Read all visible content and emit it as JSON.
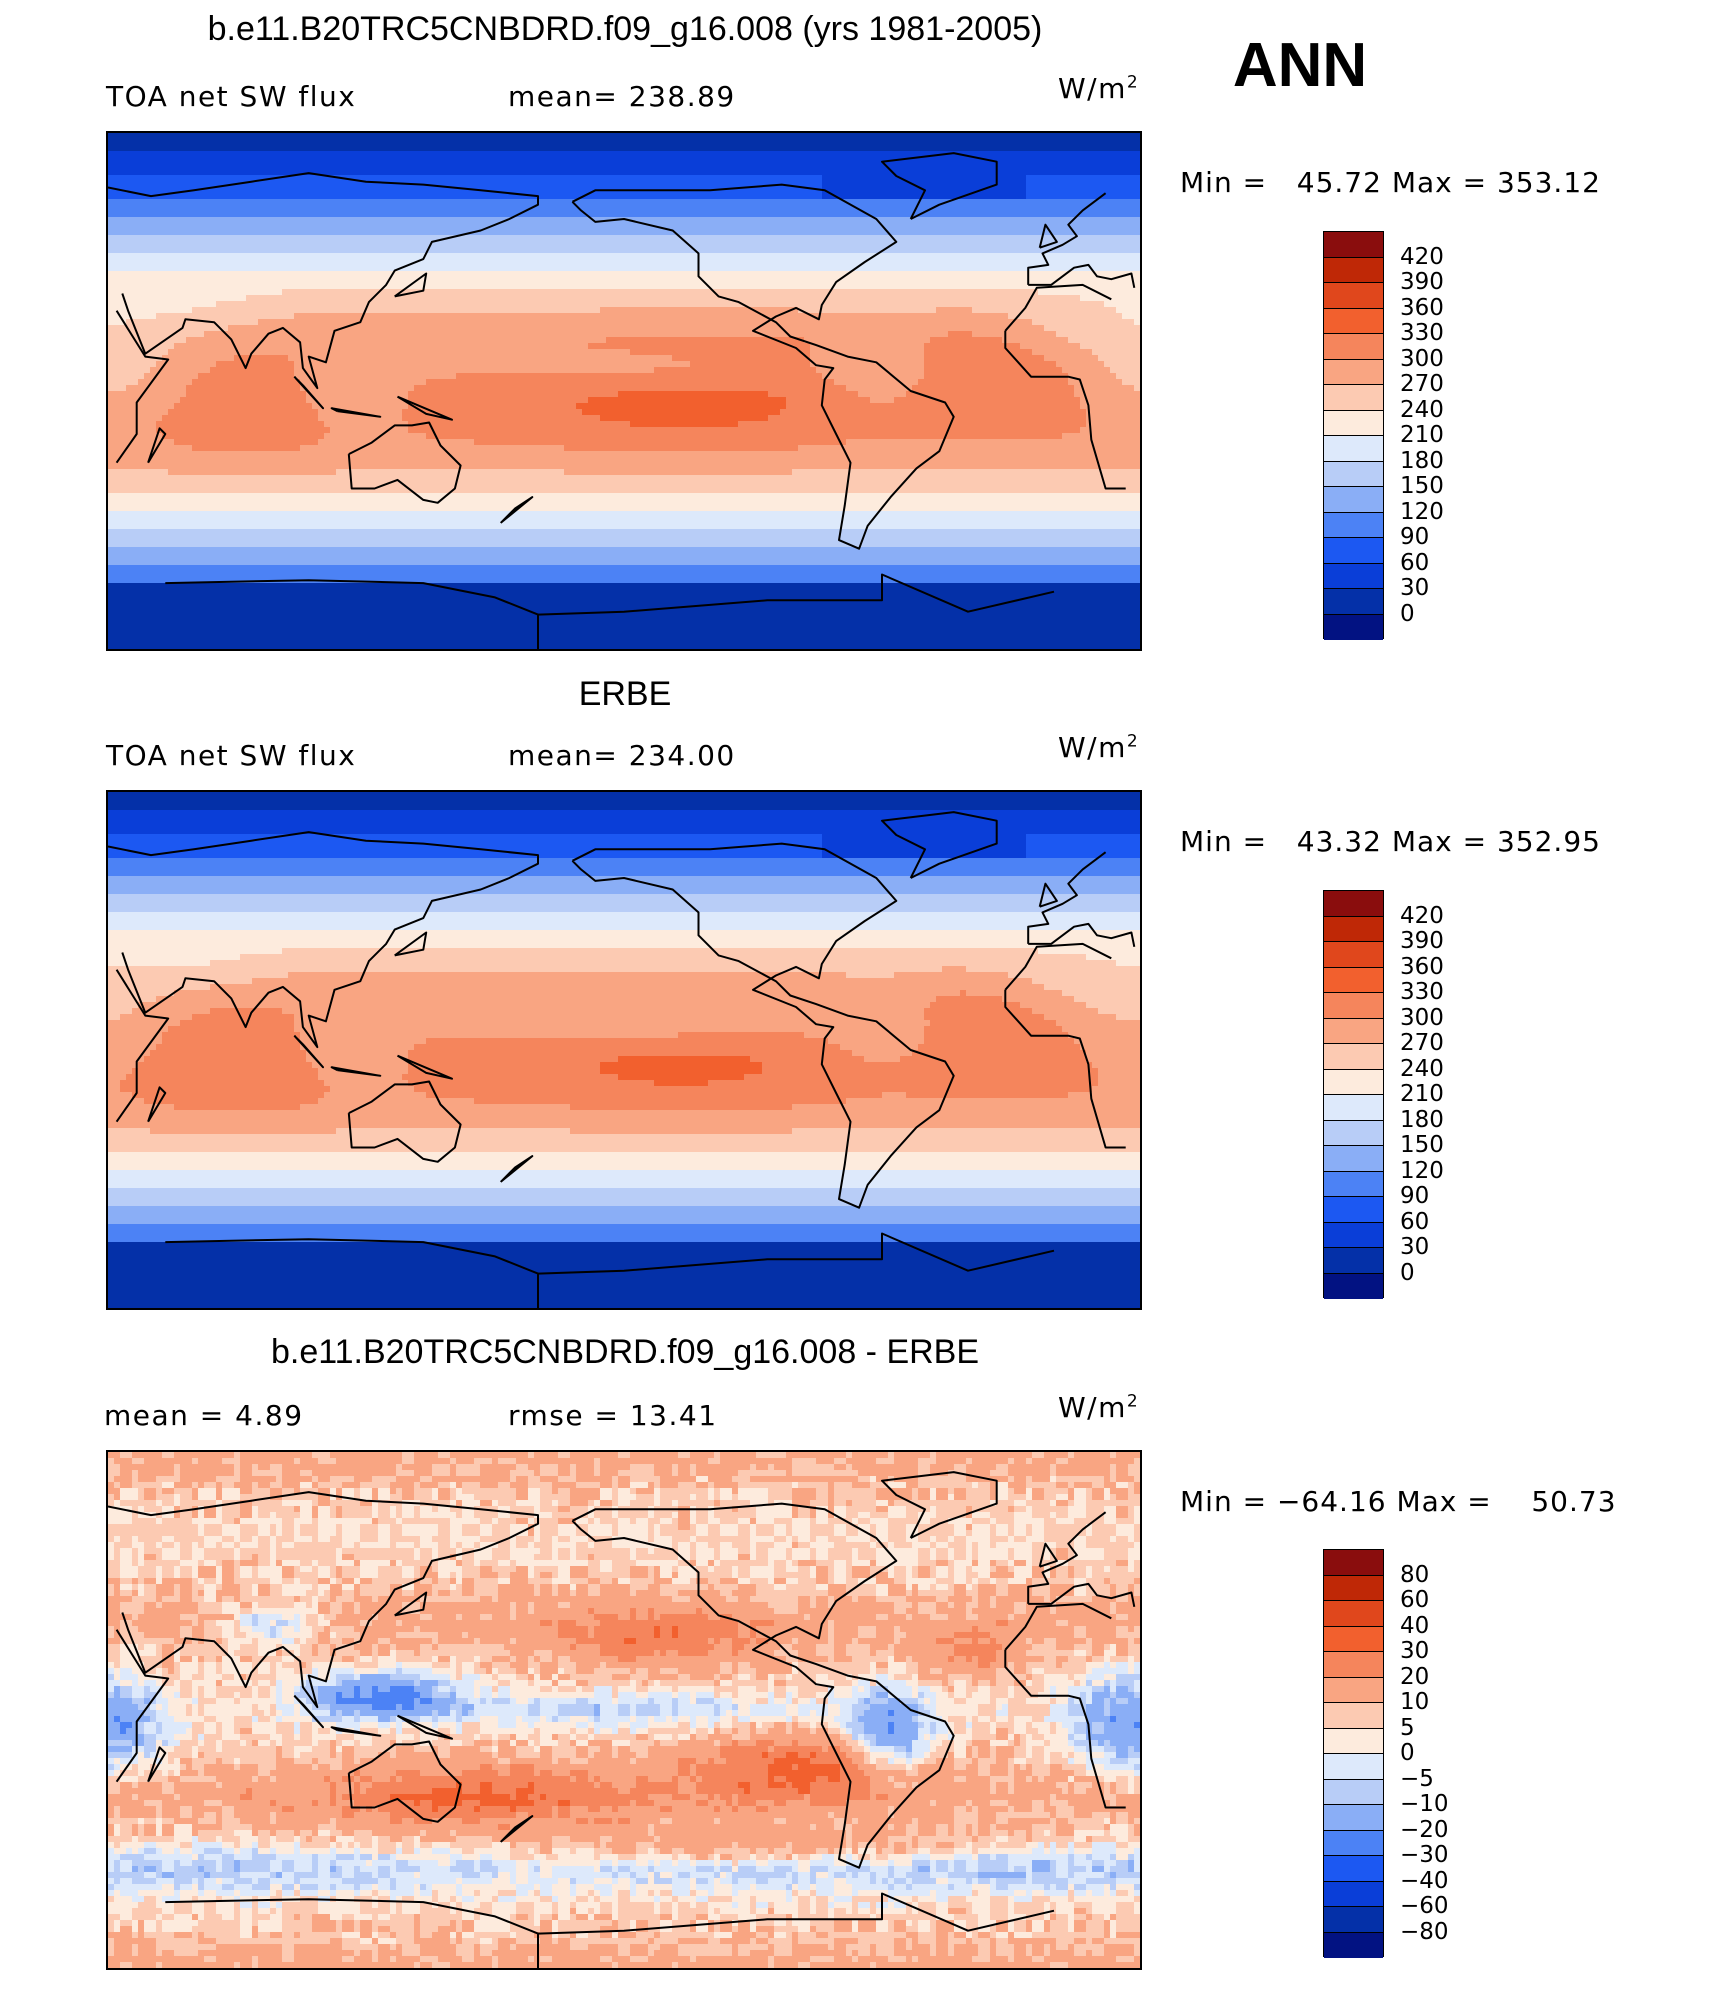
{
  "season": "ANN",
  "unit_prefix": "W/m",
  "unit_exp": "2",
  "colors": {
    "abs": [
      "#021282",
      "#0430a8",
      "#0a3ed8",
      "#1c58f2",
      "#4c82f5",
      "#8aaef6",
      "#b8cdf7",
      "#dde9fb",
      "#fdebdd",
      "#fccab2",
      "#f9a582",
      "#f5855c",
      "#f2602e",
      "#e0471c",
      "#bf2806",
      "#8a0d0d"
    ],
    "diff": [
      "#021282",
      "#0430a8",
      "#0a3ed8",
      "#1c58f2",
      "#4c82f5",
      "#8aaef6",
      "#b8cdf7",
      "#dde9fb",
      "#fdebdd",
      "#fccab2",
      "#f9a582",
      "#f5855c",
      "#f2602e",
      "#e0471c",
      "#bf2806",
      "#8a0d0d"
    ]
  },
  "panels": [
    {
      "title": "b.e11.B20TRC5CNBDRD.f09_g16.008 (yrs 1981-2005)",
      "left_label": "TOA net SW flux",
      "center_label": "mean=  238.89",
      "min_label": "Min  =",
      "min_value": "45.72",
      "max_label": "Max  =",
      "max_value": "353.12",
      "ticks": [
        "420",
        "390",
        "360",
        "330",
        "300",
        "270",
        "240",
        "210",
        "180",
        "150",
        "120",
        "90",
        "60",
        "30",
        "0"
      ],
      "palette": "abs",
      "field": "model"
    },
    {
      "title": "ERBE",
      "left_label": "TOA net SW flux",
      "center_label": "mean=  234.00",
      "min_label": "Min  =",
      "min_value": "43.32",
      "max_label": "Max  =",
      "max_value": "352.95",
      "ticks": [
        "420",
        "390",
        "360",
        "330",
        "300",
        "270",
        "240",
        "210",
        "180",
        "150",
        "120",
        "90",
        "60",
        "30",
        "0"
      ],
      "palette": "abs",
      "field": "obs"
    },
    {
      "title": "b.e11.B20TRC5CNBDRD.f09_g16.008 - ERBE",
      "left_label": "mean  =     4.89",
      "center_label": "rmse  =    13.41",
      "min_label": "Min  =",
      "min_value": "−64.16",
      "max_label": "Max  =",
      "max_value": "50.73",
      "ticks": [
        "80",
        "60",
        "40",
        "30",
        "20",
        "10",
        "5",
        "0",
        "−5",
        "−10",
        "−20",
        "−30",
        "−40",
        "−60",
        "−80"
      ],
      "palette": "diff",
      "field": "diff"
    }
  ]
}
